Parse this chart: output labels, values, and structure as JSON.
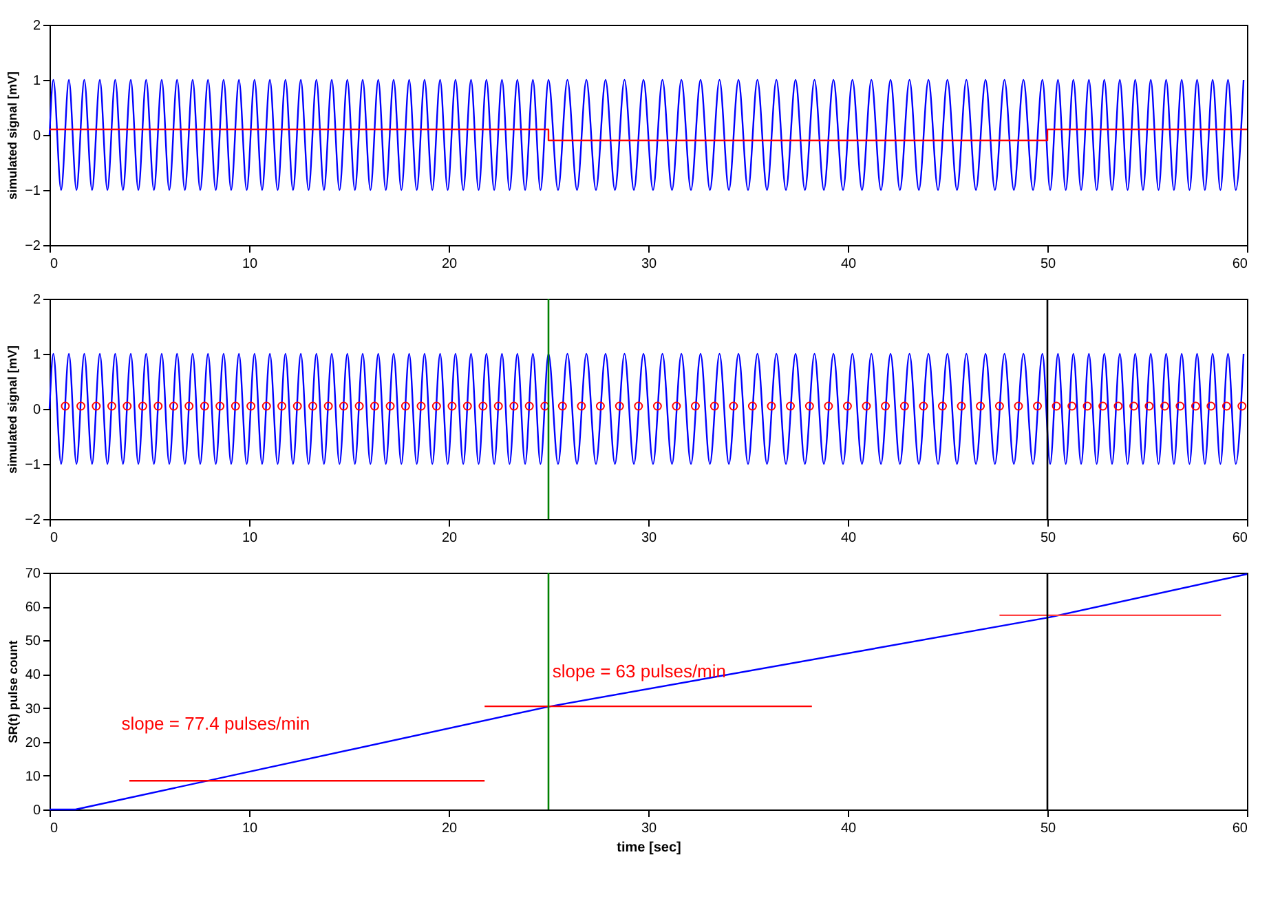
{
  "chart_data": [
    {
      "type": "line",
      "ylabel": "simulated signal [mV]",
      "xlim": [
        0,
        60
      ],
      "xticks": [
        0,
        10,
        20,
        30,
        40,
        50,
        60
      ],
      "ylim": [
        -2,
        2
      ],
      "yticks": [
        -2,
        -1,
        0,
        1,
        2
      ],
      "grid": false,
      "series": [
        {
          "type": "line",
          "color": "#0000ff",
          "x": [
            0,
            0.19,
            0.58,
            0.97,
            1.35,
            1.74,
            2.13,
            2.52,
            2.9,
            3.29,
            3.68,
            4.07,
            4.45,
            4.84,
            5.23,
            5.62,
            6.0,
            6.39,
            6.78,
            7.17,
            7.55,
            7.94,
            8.33,
            8.72,
            9.1,
            9.49,
            9.88,
            10.27,
            10.65,
            11.04,
            11.43,
            11.82,
            12.2,
            12.59,
            12.98,
            13.37,
            13.75,
            14.14,
            14.53,
            14.92,
            15.3,
            15.69,
            16.08,
            16.47,
            16.85,
            17.24,
            17.63,
            18.02,
            18.4,
            18.79,
            19.18,
            19.57,
            19.95,
            20.34,
            20.73,
            21.12,
            21.5,
            21.89,
            22.28,
            22.67,
            23.05,
            23.44,
            23.83,
            24.22,
            24.6,
            25.0,
            25.48,
            25.95,
            26.43,
            26.9,
            27.38,
            27.86,
            28.33,
            28.81,
            29.28,
            29.76,
            30.24,
            30.71,
            31.19,
            31.66,
            32.14,
            32.62,
            33.09,
            33.57,
            34.04,
            34.52,
            35.0,
            35.47,
            35.95,
            36.42,
            36.9,
            37.38,
            37.85,
            38.33,
            38.8,
            39.28,
            39.76,
            40.23,
            40.71,
            41.18,
            41.66,
            42.14,
            42.61,
            43.09,
            43.56,
            44.04,
            44.52,
            44.99,
            45.47,
            45.94,
            46.42,
            46.9,
            47.37,
            47.85,
            48.32,
            48.8,
            49.28,
            49.75,
            50.14,
            50.53,
            50.92,
            51.3,
            51.69,
            52.08,
            52.47,
            52.85,
            53.24,
            53.63,
            54.02,
            54.4,
            54.79,
            55.18,
            55.57,
            55.95,
            56.34,
            56.73,
            57.12,
            57.5,
            57.89,
            58.28,
            58.67,
            59.05,
            59.44,
            59.83
          ],
          "values": [
            0,
            1,
            -1,
            1,
            -1,
            1,
            -1,
            1,
            -1,
            1,
            -1,
            1,
            -1,
            1,
            -1,
            1,
            -1,
            1,
            -1,
            1,
            -1,
            1,
            -1,
            1,
            -1,
            1,
            -1,
            1,
            -1,
            1,
            -1,
            1,
            -1,
            1,
            -1,
            1,
            -1,
            1,
            -1,
            1,
            -1,
            1,
            -1,
            1,
            -1,
            1,
            -1,
            1,
            -1,
            1,
            -1,
            1,
            -1,
            1,
            -1,
            1,
            -1,
            1,
            -1,
            1,
            -1,
            1,
            -1,
            1,
            -1,
            1,
            -1,
            1,
            -1,
            1,
            -1,
            1,
            -1,
            1,
            -1,
            1,
            -1,
            1,
            -1,
            1,
            -1,
            1,
            -1,
            1,
            -1,
            1,
            -1,
            1,
            -1,
            1,
            -1,
            1,
            -1,
            1,
            -1,
            1,
            -1,
            1,
            -1,
            1,
            -1,
            1,
            -1,
            1,
            -1,
            1,
            -1,
            1,
            -1,
            1,
            -1,
            1,
            -1,
            1,
            -1,
            1,
            -1,
            1,
            -1,
            1,
            -1,
            1,
            -1,
            1,
            -1,
            1,
            -1,
            1,
            -1,
            1,
            -1,
            1,
            -1,
            1,
            -1,
            1,
            -1,
            1,
            -1,
            1,
            -1,
            1,
            -1,
            1
          ]
        },
        {
          "type": "step",
          "color": "#ff0000",
          "x": [
            0,
            25,
            50,
            60
          ],
          "values": [
            0.1,
            -0.1,
            0.1,
            0.1
          ]
        }
      ]
    },
    {
      "type": "line",
      "ylabel": "simulated signal [mV]",
      "xlim": [
        0,
        60
      ],
      "xticks": [
        0,
        10,
        20,
        30,
        40,
        50,
        60
      ],
      "ylim": [
        -2,
        2
      ],
      "yticks": [
        -2,
        -1,
        0,
        1,
        2
      ],
      "grid": false,
      "ref_lines": [
        {
          "axis": "x",
          "value": 25,
          "color": "#008000"
        },
        {
          "axis": "x",
          "value": 50,
          "color": "#000000"
        }
      ],
      "series": [
        {
          "type": "line",
          "color": "#0000ff",
          "x": [
            0,
            0.19,
            0.58,
            0.97,
            1.35,
            1.74,
            2.13,
            2.52,
            2.9,
            3.29,
            3.68,
            4.07,
            4.45,
            4.84,
            5.23,
            5.62,
            6.0,
            6.39,
            6.78,
            7.17,
            7.55,
            7.94,
            8.33,
            8.72,
            9.1,
            9.49,
            9.88,
            10.27,
            10.65,
            11.04,
            11.43,
            11.82,
            12.2,
            12.59,
            12.98,
            13.37,
            13.75,
            14.14,
            14.53,
            14.92,
            15.3,
            15.69,
            16.08,
            16.47,
            16.85,
            17.24,
            17.63,
            18.02,
            18.4,
            18.79,
            19.18,
            19.57,
            19.95,
            20.34,
            20.73,
            21.12,
            21.5,
            21.89,
            22.28,
            22.67,
            23.05,
            23.44,
            23.83,
            24.22,
            24.6,
            25.0,
            25.48,
            25.95,
            26.43,
            26.9,
            27.38,
            27.86,
            28.33,
            28.81,
            29.28,
            29.76,
            30.24,
            30.71,
            31.19,
            31.66,
            32.14,
            32.62,
            33.09,
            33.57,
            34.04,
            34.52,
            35.0,
            35.47,
            35.95,
            36.42,
            36.9,
            37.38,
            37.85,
            38.33,
            38.8,
            39.28,
            39.76,
            40.23,
            40.71,
            41.18,
            41.66,
            42.14,
            42.61,
            43.09,
            43.56,
            44.04,
            44.52,
            44.99,
            45.47,
            45.94,
            46.42,
            46.9,
            47.37,
            47.85,
            48.32,
            48.8,
            49.28,
            49.75,
            50.14,
            50.53,
            50.92,
            51.3,
            51.69,
            52.08,
            52.47,
            52.85,
            53.24,
            53.63,
            54.02,
            54.4,
            54.79,
            55.18,
            55.57,
            55.95,
            56.34,
            56.73,
            57.12,
            57.5,
            57.89,
            58.28,
            58.67,
            59.05,
            59.44,
            59.83
          ],
          "values": [
            0,
            1,
            -1,
            1,
            -1,
            1,
            -1,
            1,
            -1,
            1,
            -1,
            1,
            -1,
            1,
            -1,
            1,
            -1,
            1,
            -1,
            1,
            -1,
            1,
            -1,
            1,
            -1,
            1,
            -1,
            1,
            -1,
            1,
            -1,
            1,
            -1,
            1,
            -1,
            1,
            -1,
            1,
            -1,
            1,
            -1,
            1,
            -1,
            1,
            -1,
            1,
            -1,
            1,
            -1,
            1,
            -1,
            1,
            -1,
            1,
            -1,
            1,
            -1,
            1,
            -1,
            1,
            -1,
            1,
            -1,
            1,
            -1,
            1,
            -1,
            1,
            -1,
            1,
            -1,
            1,
            -1,
            1,
            -1,
            1,
            -1,
            1,
            -1,
            1,
            -1,
            1,
            -1,
            1,
            -1,
            1,
            -1,
            1,
            -1,
            1,
            -1,
            1,
            -1,
            1,
            -1,
            1,
            -1,
            1,
            -1,
            1,
            -1,
            1,
            -1,
            1,
            -1,
            1,
            -1,
            1,
            -1,
            1,
            -1,
            1,
            -1,
            1,
            -1,
            1,
            -1,
            1,
            -1,
            1,
            -1,
            1,
            -1,
            1,
            -1,
            1,
            -1,
            1,
            -1,
            1,
            -1,
            1,
            -1,
            1,
            -1,
            1,
            -1,
            1,
            -1,
            1,
            -1,
            1,
            -1,
            1
          ]
        },
        {
          "type": "scatter",
          "color": "#ff0000",
          "marker": "circle",
          "x": [
            0.79,
            1.57,
            2.34,
            3.12,
            3.89,
            4.67,
            5.44,
            6.22,
            6.99,
            7.77,
            8.54,
            9.32,
            10.09,
            10.87,
            11.64,
            12.42,
            13.19,
            13.97,
            14.74,
            15.52,
            16.29,
            17.07,
            17.84,
            18.62,
            19.39,
            20.17,
            20.94,
            21.72,
            22.49,
            23.27,
            24.04,
            24.82,
            25.7,
            26.65,
            27.6,
            28.56,
            29.51,
            30.46,
            31.41,
            32.36,
            33.32,
            34.27,
            35.22,
            36.17,
            37.12,
            38.08,
            39.03,
            39.98,
            40.93,
            41.88,
            42.84,
            43.79,
            44.74,
            45.69,
            46.64,
            47.6,
            48.55,
            49.5,
            50.45,
            51.23,
            52.0,
            52.78,
            53.55,
            54.33,
            55.1,
            55.88,
            56.65,
            57.43,
            58.2,
            58.98,
            59.75
          ],
          "values": [
            0.05,
            0.05,
            0.05,
            0.05,
            0.05,
            0.05,
            0.05,
            0.05,
            0.05,
            0.05,
            0.05,
            0.05,
            0.05,
            0.05,
            0.05,
            0.05,
            0.05,
            0.05,
            0.05,
            0.05,
            0.05,
            0.05,
            0.05,
            0.05,
            0.05,
            0.05,
            0.05,
            0.05,
            0.05,
            0.05,
            0.05,
            0.05,
            0.05,
            0.05,
            0.05,
            0.05,
            0.05,
            0.05,
            0.05,
            0.05,
            0.05,
            0.05,
            0.05,
            0.05,
            0.05,
            0.05,
            0.05,
            0.05,
            0.05,
            0.05,
            0.05,
            0.05,
            0.05,
            0.05,
            0.05,
            0.05,
            0.05,
            0.05,
            0.05,
            0.05,
            0.05,
            0.05,
            0.05,
            0.05,
            0.05,
            0.05,
            0.05,
            0.05,
            0.05,
            0.05,
            0.05
          ]
        }
      ]
    },
    {
      "type": "line",
      "xlabel": "time [sec]",
      "ylabel": "SR(t) pulse count",
      "xlim": [
        0,
        60
      ],
      "xticks": [
        0,
        10,
        20,
        30,
        40,
        50,
        60
      ],
      "ylim": [
        0,
        70
      ],
      "yticks": [
        0,
        10,
        20,
        30,
        40,
        50,
        60,
        70
      ],
      "grid": false,
      "ref_lines": [
        {
          "axis": "x",
          "value": 25,
          "color": "#008000"
        },
        {
          "axis": "x",
          "value": 50,
          "color": "#000000"
        }
      ],
      "annotations": [
        "slope = 77.4 pulses/min",
        "slope = 63 pulses/min"
      ],
      "series": [
        {
          "type": "line",
          "color": "#0000ff",
          "x": [
            0,
            1.3,
            25,
            50,
            60
          ],
          "values": [
            0,
            0,
            30.4,
            56.7,
            69.6
          ]
        },
        {
          "type": "line",
          "color": "#ff0000",
          "x": [
            4,
            21.8
          ],
          "values": [
            8.5,
            8.5
          ]
        },
        {
          "type": "line",
          "color": "#ff0000",
          "x": [
            21.8,
            38.2
          ],
          "values": [
            30.5,
            30.5
          ]
        },
        {
          "type": "line",
          "color": "#ff4040",
          "x": [
            47.6,
            58.7
          ],
          "values": [
            57.4,
            57.4
          ]
        }
      ]
    }
  ]
}
